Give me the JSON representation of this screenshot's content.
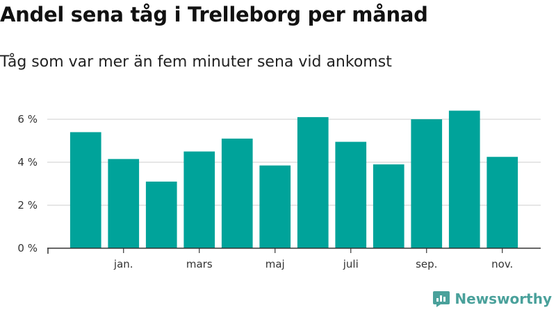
{
  "header": {
    "title": "Andel sena tåg i Trelleborg per månad",
    "subtitle": "Tåg som var mer än fem minuter sena vid ankomst"
  },
  "brand": {
    "name": "Newsworthy",
    "icon": "newsworthy-logo-icon"
  },
  "colors": {
    "bar": "#00a39a",
    "grid": "#dddddd",
    "axis": "#333333",
    "brand": "#4aa19b"
  },
  "chart_data": {
    "type": "bar",
    "title": "Andel sena tåg i Trelleborg per månad",
    "subtitle": "Tåg som var mer än fem minuter sena vid ankomst",
    "categories": [
      "",
      "jan.",
      "",
      "mars",
      "",
      "maj",
      "",
      "juli",
      "",
      "sep.",
      "",
      "nov."
    ],
    "values": [
      5.4,
      4.15,
      3.1,
      4.5,
      5.1,
      3.85,
      6.1,
      4.95,
      3.9,
      6.0,
      6.4,
      4.25
    ],
    "yticks": [
      0,
      2,
      4,
      6
    ],
    "ytick_labels": [
      "0 %",
      "2 %",
      "4 %",
      "6 %"
    ],
    "ylim": [
      0,
      7
    ],
    "xlabel": "",
    "ylabel": "",
    "grid": true
  }
}
